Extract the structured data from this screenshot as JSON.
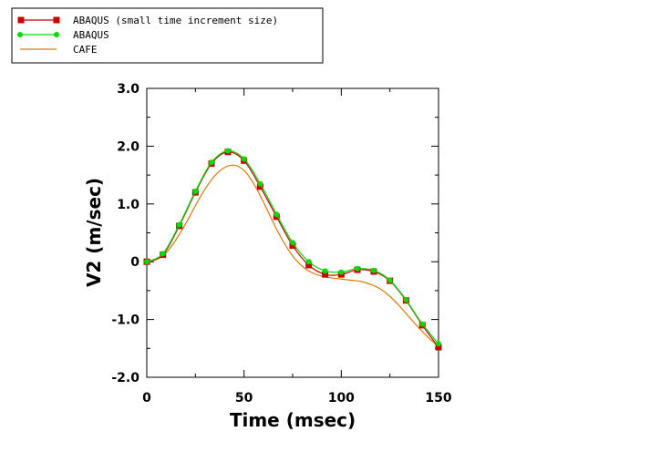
{
  "chart_data": {
    "type": "line",
    "xlabel": "Time (msec)",
    "ylabel": "V2 (m/sec)",
    "xlim": [
      0,
      150
    ],
    "ylim": [
      -2.0,
      3.0
    ],
    "x_ticks": [
      0,
      50,
      100,
      150
    ],
    "y_ticks": [
      -2.0,
      -1.0,
      0,
      1.0,
      2.0,
      3.0
    ],
    "x_tick_labels": [
      "0",
      "50",
      "100",
      "150"
    ],
    "y_tick_labels": [
      "-2.0",
      "-1.0",
      "0",
      "1.0",
      "2.0",
      "3.0"
    ],
    "grid": false,
    "legend_position": "top-left",
    "series": [
      {
        "name": "ABAQUS (small time increment size)",
        "color": "#cc0000",
        "marker": "square",
        "x": [
          0,
          8.3,
          16.7,
          25,
          33.3,
          41.7,
          50,
          58.3,
          66.7,
          75,
          83.3,
          91.7,
          100,
          108.3,
          116.7,
          125,
          133.3,
          141.7,
          150
        ],
        "y": [
          0.0,
          0.12,
          0.62,
          1.2,
          1.7,
          1.9,
          1.75,
          1.3,
          0.78,
          0.28,
          -0.06,
          -0.22,
          -0.22,
          -0.14,
          -0.17,
          -0.33,
          -0.67,
          -1.1,
          -1.48
        ]
      },
      {
        "name": "ABAQUS",
        "color": "#00dd00",
        "marker": "circle",
        "x": [
          0,
          8.3,
          16.7,
          25,
          33.3,
          41.7,
          50,
          58.3,
          66.7,
          75,
          83.3,
          91.7,
          100,
          108.3,
          116.7,
          125,
          133.3,
          141.7,
          150
        ],
        "y": [
          0.0,
          0.14,
          0.64,
          1.22,
          1.72,
          1.92,
          1.78,
          1.35,
          0.82,
          0.33,
          0.0,
          -0.16,
          -0.18,
          -0.12,
          -0.15,
          -0.32,
          -0.66,
          -1.08,
          -1.42
        ]
      },
      {
        "name": "CAFE",
        "color": "#e07800",
        "marker": "none",
        "x": [
          0,
          5,
          10,
          15,
          20,
          25,
          30,
          35,
          40,
          45,
          50,
          55,
          60,
          65,
          70,
          75,
          80,
          85,
          90,
          95,
          100,
          105,
          110,
          115,
          120,
          125,
          130,
          135,
          140,
          145,
          150
        ],
        "y": [
          0.0,
          0.04,
          0.16,
          0.38,
          0.66,
          0.97,
          1.26,
          1.49,
          1.63,
          1.67,
          1.58,
          1.35,
          1.03,
          0.68,
          0.36,
          0.1,
          -0.08,
          -0.19,
          -0.25,
          -0.28,
          -0.3,
          -0.32,
          -0.34,
          -0.39,
          -0.47,
          -0.6,
          -0.77,
          -0.96,
          -1.15,
          -1.32,
          -1.47
        ]
      }
    ]
  }
}
